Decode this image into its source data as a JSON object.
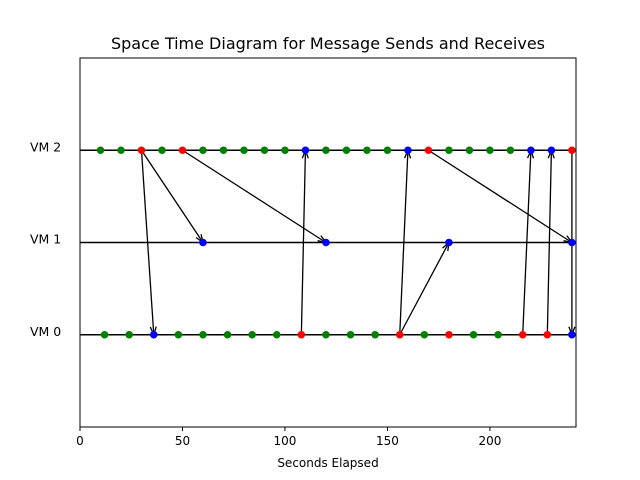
{
  "chart_data": {
    "type": "scatter",
    "title": "Space Time Diagram for Message Sends and Receives",
    "xlabel": "Seconds Elapsed",
    "ylabel": "",
    "xlim": [
      0,
      242
    ],
    "ylim": [
      -1,
      3
    ],
    "xticks": [
      0,
      50,
      100,
      150,
      200
    ],
    "grid": false,
    "lanes": [
      {
        "label": "VM 2",
        "y": 2
      },
      {
        "label": "VM 1",
        "y": 1
      },
      {
        "label": "VM 0",
        "y": 0
      }
    ],
    "colors": {
      "internal": "#008000",
      "send": "#ff0000",
      "receive": "#0000ff",
      "line": "#000000"
    },
    "events": {
      "VM 2": {
        "internal": [
          10,
          20,
          40,
          60,
          70,
          80,
          90,
          100,
          120,
          130,
          140,
          150,
          180,
          190,
          200,
          210
        ],
        "send": [
          30,
          50,
          170,
          240
        ],
        "receive": [
          110,
          160,
          220,
          230
        ]
      },
      "VM 1": {
        "internal": [],
        "send": [],
        "receive": [
          60,
          120,
          180,
          240
        ]
      },
      "VM 0": {
        "internal": [
          12,
          24,
          48,
          60,
          72,
          84,
          96,
          120,
          132,
          144,
          168,
          192,
          204
        ],
        "send": [
          108,
          156,
          180,
          216,
          228
        ],
        "receive": [
          36,
          240
        ]
      }
    },
    "messages": [
      {
        "from": "VM 2",
        "send_x": 30,
        "to": "VM 1",
        "recv_x": 60
      },
      {
        "from": "VM 2",
        "send_x": 30,
        "to": "VM 0",
        "recv_x": 36
      },
      {
        "from": "VM 2",
        "send_x": 50,
        "to": "VM 1",
        "recv_x": 120
      },
      {
        "from": "VM 0",
        "send_x": 108,
        "to": "VM 2",
        "recv_x": 110
      },
      {
        "from": "VM 0",
        "send_x": 156,
        "to": "VM 2",
        "recv_x": 160
      },
      {
        "from": "VM 0",
        "send_x": 156,
        "to": "VM 1",
        "recv_x": 180
      },
      {
        "from": "VM 2",
        "send_x": 170,
        "to": "VM 1",
        "recv_x": 240
      },
      {
        "from": "VM 0",
        "send_x": 216,
        "to": "VM 2",
        "recv_x": 220
      },
      {
        "from": "VM 0",
        "send_x": 228,
        "to": "VM 2",
        "recv_x": 230
      },
      {
        "from": "VM 2",
        "send_x": 240,
        "to": "VM 0",
        "recv_x": 240
      }
    ]
  }
}
